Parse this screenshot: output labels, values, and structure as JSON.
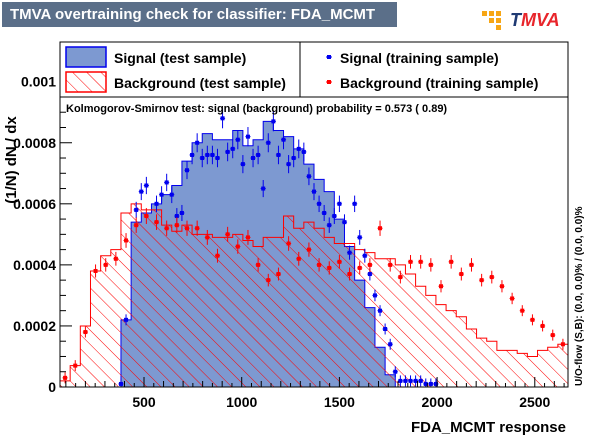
{
  "title": "TMVA overtraining check for classifier: FDA_MCMT",
  "logo": {
    "text_t": "T",
    "text_rest": "MVA"
  },
  "ks_text": "Kolmogorov-Smirnov test: signal (background) probability = 0.573 ( 0.89)",
  "overflow_text": "U/O-flow (S,B): (0.0, 0.0)% / (0.0, 0.0)%",
  "colors": {
    "signal_fill": "#7d99d1",
    "signal_line": "#0000ee",
    "background": "#ff0000",
    "title_bg": "#5b6f89"
  },
  "chart_data": {
    "type": "histogram",
    "xlabel": "FDA_MCMT response",
    "ylabel": "(1/N) dN / dx",
    "xlim": [
      70,
      2670
    ],
    "ylim": [
      0,
      0.00113
    ],
    "xticks": [
      500,
      1000,
      1500,
      2000,
      2500
    ],
    "yticks": [
      0,
      0.0002,
      0.0004,
      0.0006,
      0.0008,
      0.001
    ],
    "ytick_labels": [
      "0",
      "0.0002",
      "0.0004",
      "0.0006",
      "0.0008",
      "0.001"
    ],
    "bin_width": 52,
    "series": [
      {
        "name": "Signal (test sample)",
        "kind": "filled-hist",
        "bin_start": 382,
        "bin_width": 52,
        "values": [
          0.00022,
          0.00054,
          0.00057,
          0.0006,
          0.00063,
          0.00066,
          0.00074,
          0.0008,
          0.00083,
          0.00081,
          0.00081,
          0.00084,
          0.00079,
          0.00081,
          0.00087,
          0.00084,
          0.00082,
          0.00078,
          0.00073,
          0.00068,
          0.00064,
          0.00055,
          0.00046,
          0.00035,
          0.00026,
          0.00013,
          4e-05
        ]
      },
      {
        "name": "Background (test sample)",
        "kind": "hatched-hist",
        "bin_start": 70,
        "bin_width": 52,
        "values": [
          2e-05,
          7e-05,
          0.0002,
          0.00038,
          0.00043,
          0.00045,
          0.00057,
          0.0006,
          0.00058,
          0.00058,
          0.00053,
          0.00051,
          0.00053,
          0.0005,
          0.0005,
          0.00049,
          0.00049,
          0.0005,
          0.00048,
          0.00046,
          0.00049,
          0.00049,
          0.00056,
          0.00052,
          0.00054,
          0.00052,
          0.00049,
          0.00047,
          0.00047,
          0.00045,
          0.00044,
          0.00042,
          0.00042,
          0.0004,
          0.00037,
          0.00033,
          0.0003,
          0.00027,
          0.00025,
          0.00023,
          0.00019,
          0.00016,
          0.00015,
          0.00012,
          0.00012,
          0.00011,
          0.0001,
          0.00012,
          0.00013,
          0.00014
        ]
      },
      {
        "name": "Signal (training sample)",
        "kind": "points",
        "x": [
          382,
          408,
          460,
          486,
          512,
          564,
          590,
          616,
          642,
          668,
          694,
          720,
          746,
          772,
          798,
          824,
          850,
          876,
          902,
          928,
          954,
          980,
          1006,
          1032,
          1058,
          1084,
          1110,
          1136,
          1162,
          1188,
          1214,
          1240,
          1266,
          1292,
          1318,
          1344,
          1370,
          1396,
          1422,
          1448,
          1474,
          1500,
          1526,
          1552,
          1578,
          1604,
          1630,
          1656,
          1682,
          1708,
          1734,
          1760,
          1786,
          1812,
          1838,
          1864,
          1890,
          1916,
          1942,
          1968,
          1994
        ],
        "y": [
          1e-05,
          0.00022,
          0.00058,
          0.00064,
          0.00066,
          0.0006,
          0.00063,
          0.00067,
          0.00063,
          0.00056,
          0.00057,
          0.00071,
          0.00076,
          0.0008,
          0.00075,
          0.00076,
          0.00076,
          0.00075,
          0.00088,
          0.00077,
          0.00078,
          0.00081,
          0.00073,
          0.00082,
          0.00075,
          0.00076,
          0.00065,
          0.0008,
          0.00087,
          0.00076,
          0.00081,
          0.00073,
          0.00075,
          0.00078,
          0.00077,
          0.00069,
          0.00064,
          0.0006,
          0.00057,
          0.00053,
          0.00056,
          0.0006,
          0.00054,
          0.00044,
          0.0006,
          0.00049,
          0.00043,
          0.00037,
          0.0003,
          0.00025,
          0.00019,
          0.00014,
          5e-05,
          2e-05,
          2e-05,
          2e-05,
          2e-05,
          2e-05,
          1e-05,
          1e-05,
          1e-05
        ]
      },
      {
        "name": "Background (training sample)",
        "kind": "points",
        "x": [
          96,
          148,
          200,
          252,
          304,
          356,
          408,
          460,
          512,
          564,
          616,
          668,
          720,
          772,
          824,
          876,
          928,
          980,
          1032,
          1084,
          1136,
          1188,
          1240,
          1292,
          1344,
          1396,
          1448,
          1500,
          1552,
          1604,
          1656,
          1708,
          1760,
          1812,
          1864,
          1916,
          1968,
          2020,
          2072,
          2124,
          2176,
          2228,
          2280,
          2332,
          2384,
          2436,
          2488,
          2540,
          2592,
          2644
        ],
        "y": [
          3e-05,
          7e-05,
          0.00018,
          0.00038,
          0.0004,
          0.00042,
          0.00048,
          0.00053,
          0.00056,
          0.00054,
          0.00052,
          0.00053,
          0.00052,
          0.00052,
          0.00049,
          0.00043,
          0.0005,
          0.00046,
          0.00049,
          0.0004,
          0.00035,
          0.00037,
          0.00047,
          0.00042,
          0.00045,
          0.0004,
          0.00039,
          0.00041,
          0.00037,
          0.00039,
          0.0004,
          0.00052,
          0.0004,
          0.00036,
          0.00041,
          0.00041,
          0.0004,
          0.00033,
          0.00041,
          0.00037,
          0.0004,
          0.00035,
          0.00036,
          0.00033,
          0.00029,
          0.00025,
          0.00022,
          0.0002,
          0.00017,
          0.00014
        ]
      }
    ],
    "legend": {
      "placement": "top",
      "columns": 2
    }
  }
}
